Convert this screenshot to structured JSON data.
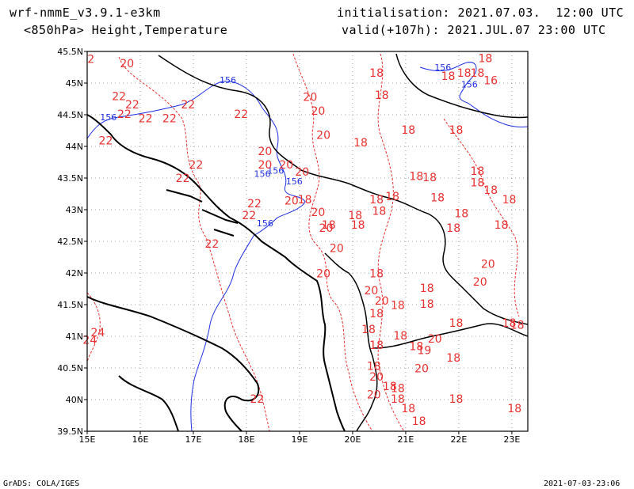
{
  "header": {
    "model": "wrf-nmmE_v3.9.1-e3km",
    "field": "<850hPa> Height,Temperature",
    "init": "initialisation: 2021.07.03.  12:00 UTC",
    "valid": "valid(+107h): 2021.JUL.07 23:00 UTC"
  },
  "footer": {
    "left": "GrADS: COLA/IGES",
    "right": "2021-07-03-23:06"
  },
  "colors": {
    "temperature": "#e83030",
    "height": "#2030e0",
    "coast": "#000000",
    "grid": "#888888"
  },
  "axes": {
    "lon_ticks": [
      "15E",
      "16E",
      "17E",
      "18E",
      "19E",
      "20E",
      "21E",
      "22E",
      "23E"
    ],
    "lat_ticks": [
      "39.5N",
      "40N",
      "40.5N",
      "41N",
      "41.5N",
      "42N",
      "42.5N",
      "43N",
      "43.5N",
      "44N",
      "44.5N",
      "45N",
      "45.5N"
    ]
  },
  "height_labels": [
    {
      "text": "156",
      "lon": 17.65,
      "lat": 45.0
    },
    {
      "text": "156",
      "lon": 15.4,
      "lat": 44.41
    },
    {
      "text": "156",
      "lon": 18.55,
      "lat": 43.57
    },
    {
      "text": "156",
      "lon": 18.9,
      "lat": 43.4
    },
    {
      "text": "156",
      "lon": 18.35,
      "lat": 42.74
    },
    {
      "text": "156",
      "lon": 18.3,
      "lat": 43.52
    },
    {
      "text": "156",
      "lon": 21.7,
      "lat": 45.2
    },
    {
      "text": "156",
      "lon": 22.2,
      "lat": 44.93
    }
  ],
  "temp_labels": [
    {
      "text": "2",
      "lon": 15.07,
      "lat": 45.32
    },
    {
      "text": "20",
      "lon": 15.75,
      "lat": 45.25
    },
    {
      "text": "22",
      "lon": 15.6,
      "lat": 44.73
    },
    {
      "text": "22",
      "lon": 15.85,
      "lat": 44.6
    },
    {
      "text": "22",
      "lon": 15.7,
      "lat": 44.45
    },
    {
      "text": "22",
      "lon": 16.1,
      "lat": 44.38
    },
    {
      "text": "22",
      "lon": 16.55,
      "lat": 44.38
    },
    {
      "text": "22",
      "lon": 16.9,
      "lat": 44.6
    },
    {
      "text": "22",
      "lon": 17.9,
      "lat": 44.45
    },
    {
      "text": "22",
      "lon": 15.35,
      "lat": 44.03
    },
    {
      "text": "22",
      "lon": 17.05,
      "lat": 43.65
    },
    {
      "text": "22",
      "lon": 16.8,
      "lat": 43.44
    },
    {
      "text": "22",
      "lon": 18.15,
      "lat": 43.04
    },
    {
      "text": "22",
      "lon": 18.05,
      "lat": 42.85
    },
    {
      "text": "22",
      "lon": 17.35,
      "lat": 42.4
    },
    {
      "text": "22",
      "lon": 18.2,
      "lat": 39.95
    },
    {
      "text": "20",
      "lon": 19.2,
      "lat": 44.72
    },
    {
      "text": "20",
      "lon": 19.35,
      "lat": 44.5
    },
    {
      "text": "20",
      "lon": 19.45,
      "lat": 44.12
    },
    {
      "text": "20",
      "lon": 18.35,
      "lat": 43.86
    },
    {
      "text": "20",
      "lon": 18.35,
      "lat": 43.65
    },
    {
      "text": "20",
      "lon": 18.75,
      "lat": 43.65
    },
    {
      "text": "20",
      "lon": 19.05,
      "lat": 43.54
    },
    {
      "text": "20",
      "lon": 18.85,
      "lat": 43.08
    },
    {
      "text": "20",
      "lon": 19.35,
      "lat": 42.9
    },
    {
      "text": "20",
      "lon": 19.5,
      "lat": 42.65
    },
    {
      "text": "20",
      "lon": 19.7,
      "lat": 42.33
    },
    {
      "text": "20",
      "lon": 19.45,
      "lat": 41.93
    },
    {
      "text": "18",
      "lon": 19.1,
      "lat": 43.1
    },
    {
      "text": "18",
      "lon": 19.55,
      "lat": 42.7
    },
    {
      "text": "18",
      "lon": 20.05,
      "lat": 42.85
    },
    {
      "text": "18",
      "lon": 20.1,
      "lat": 42.7
    },
    {
      "text": "18",
      "lon": 20.45,
      "lat": 43.1
    },
    {
      "text": "18",
      "lon": 20.5,
      "lat": 42.92
    },
    {
      "text": "18",
      "lon": 20.75,
      "lat": 43.15
    },
    {
      "text": "18",
      "lon": 20.15,
      "lat": 44.0
    },
    {
      "text": "18",
      "lon": 21.05,
      "lat": 44.2
    },
    {
      "text": "18",
      "lon": 20.45,
      "lat": 45.1
    },
    {
      "text": "18",
      "lon": 20.55,
      "lat": 44.75
    },
    {
      "text": "18",
      "lon": 21.2,
      "lat": 43.47
    },
    {
      "text": "18",
      "lon": 21.45,
      "lat": 43.45
    },
    {
      "text": "18",
      "lon": 21.6,
      "lat": 43.13
    },
    {
      "text": "18",
      "lon": 21.95,
      "lat": 44.2
    },
    {
      "text": "18",
      "lon": 21.8,
      "lat": 45.05
    },
    {
      "text": "18",
      "lon": 22.1,
      "lat": 45.1
    },
    {
      "text": "18",
      "lon": 22.35,
      "lat": 45.1
    },
    {
      "text": "18",
      "lon": 22.5,
      "lat": 45.33
    },
    {
      "text": "16",
      "lon": 22.6,
      "lat": 44.98
    },
    {
      "text": "18",
      "lon": 22.35,
      "lat": 43.55
    },
    {
      "text": "18",
      "lon": 22.35,
      "lat": 43.37
    },
    {
      "text": "18",
      "lon": 22.6,
      "lat": 43.25
    },
    {
      "text": "18",
      "lon": 22.95,
      "lat": 43.1
    },
    {
      "text": "18",
      "lon": 22.05,
      "lat": 42.88
    },
    {
      "text": "18",
      "lon": 21.9,
      "lat": 42.65
    },
    {
      "text": "18",
      "lon": 22.8,
      "lat": 42.7
    },
    {
      "text": "20",
      "lon": 22.55,
      "lat": 42.08
    },
    {
      "text": "20",
      "lon": 22.4,
      "lat": 41.8
    },
    {
      "text": "18",
      "lon": 20.45,
      "lat": 41.93
    },
    {
      "text": "20",
      "lon": 20.35,
      "lat": 41.66
    },
    {
      "text": "20",
      "lon": 20.55,
      "lat": 41.5
    },
    {
      "text": "18",
      "lon": 20.85,
      "lat": 41.43
    },
    {
      "text": "18",
      "lon": 20.45,
      "lat": 41.3
    },
    {
      "text": "18",
      "lon": 21.4,
      "lat": 41.7
    },
    {
      "text": "18",
      "lon": 21.4,
      "lat": 41.45
    },
    {
      "text": "18",
      "lon": 21.95,
      "lat": 41.15
    },
    {
      "text": "18",
      "lon": 22.95,
      "lat": 41.15
    },
    {
      "text": "18",
      "lon": 23.1,
      "lat": 41.12
    },
    {
      "text": "18",
      "lon": 20.3,
      "lat": 41.05
    },
    {
      "text": "18",
      "lon": 20.9,
      "lat": 40.95
    },
    {
      "text": "18",
      "lon": 20.45,
      "lat": 40.8
    },
    {
      "text": "18",
      "lon": 21.2,
      "lat": 40.78
    },
    {
      "text": "19",
      "lon": 21.35,
      "lat": 40.72
    },
    {
      "text": "20",
      "lon": 21.55,
      "lat": 40.9
    },
    {
      "text": "18",
      "lon": 21.9,
      "lat": 40.6
    },
    {
      "text": "18",
      "lon": 20.4,
      "lat": 40.47
    },
    {
      "text": "20",
      "lon": 21.3,
      "lat": 40.43
    },
    {
      "text": "20",
      "lon": 20.45,
      "lat": 40.3
    },
    {
      "text": "18",
      "lon": 20.7,
      "lat": 40.15
    },
    {
      "text": "18",
      "lon": 20.85,
      "lat": 40.12
    },
    {
      "text": "20",
      "lon": 20.4,
      "lat": 40.02
    },
    {
      "text": "18",
      "lon": 20.85,
      "lat": 39.95
    },
    {
      "text": "18",
      "lon": 21.05,
      "lat": 39.8
    },
    {
      "text": "18",
      "lon": 21.25,
      "lat": 39.6
    },
    {
      "text": "18",
      "lon": 21.95,
      "lat": 39.95
    },
    {
      "text": "18",
      "lon": 23.05,
      "lat": 39.8
    },
    {
      "text": "24",
      "lon": 15.2,
      "lat": 41.0
    },
    {
      "text": "24",
      "lon": 15.05,
      "lat": 40.88
    }
  ]
}
